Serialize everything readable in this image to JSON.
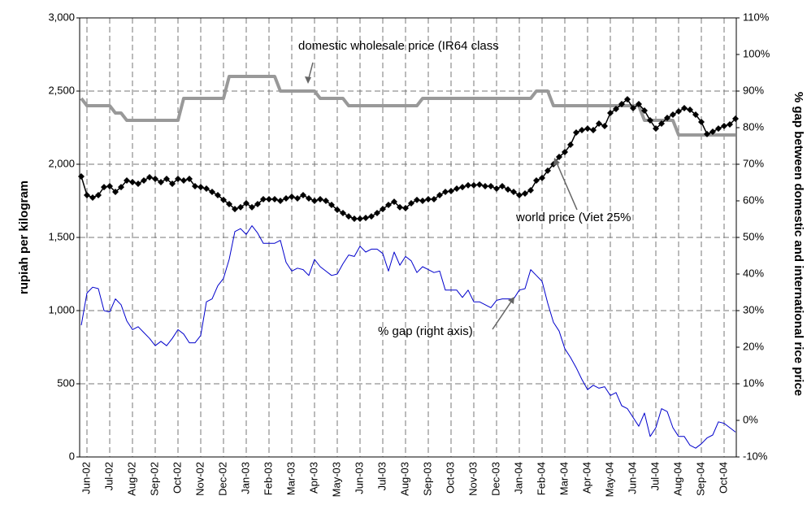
{
  "chart_data": {
    "type": "line",
    "ylabel": "rupiah per kilogram",
    "y2label": "% gap between domestic and international rice price",
    "categories": [
      null,
      "Jun-02",
      null,
      null,
      null,
      "Jul-02",
      null,
      null,
      null,
      "Aug-02",
      null,
      null,
      null,
      "Sep-02",
      null,
      null,
      null,
      "Oct-02",
      null,
      null,
      null,
      "Nov-02",
      null,
      null,
      null,
      "Dec-02",
      null,
      null,
      null,
      "Jan-03",
      null,
      null,
      null,
      "Feb-03",
      null,
      null,
      null,
      "Mar-03",
      null,
      null,
      null,
      "Apr-03",
      null,
      null,
      null,
      "May-03",
      null,
      null,
      null,
      "Jun-03",
      null,
      null,
      null,
      "Jul-03",
      null,
      null,
      null,
      "Aug-03",
      null,
      null,
      null,
      "Sep-03",
      null,
      null,
      null,
      "Oct-03",
      null,
      null,
      null,
      "Nov-03",
      null,
      null,
      null,
      "Dec-03",
      null,
      null,
      null,
      "Jan-04",
      null,
      null,
      null,
      "Feb-04",
      null,
      null,
      null,
      "Mar-04",
      null,
      null,
      null,
      "Apr-04",
      null,
      null,
      null,
      "May-04",
      null,
      null,
      null,
      "Jun-04",
      null,
      null,
      null,
      "Jul-04",
      null,
      null,
      null,
      "Aug-04",
      null,
      null,
      null,
      "Sep-04",
      null,
      null,
      null,
      "Oct-04",
      null,
      null
    ],
    "series": [
      {
        "name": "domestic wholesale price (IR64 class",
        "color": "#999999",
        "marker": "none",
        "width": 4,
        "values": [
          2450,
          2400,
          2400,
          2400,
          2400,
          2400,
          2350,
          2350,
          2300,
          2300,
          2300,
          2300,
          2300,
          2300,
          2300,
          2300,
          2300,
          2300,
          2450,
          2450,
          2450,
          2450,
          2450,
          2450,
          2450,
          2450,
          2600,
          2600,
          2600,
          2600,
          2600,
          2600,
          2600,
          2600,
          2600,
          2500,
          2500,
          2500,
          2500,
          2500,
          2500,
          2500,
          2450,
          2450,
          2450,
          2450,
          2450,
          2400,
          2400,
          2400,
          2400,
          2400,
          2400,
          2400,
          2400,
          2400,
          2400,
          2400,
          2400,
          2400,
          2450,
          2450,
          2450,
          2450,
          2450,
          2450,
          2450,
          2450,
          2450,
          2450,
          2450,
          2450,
          2450,
          2450,
          2450,
          2450,
          2450,
          2450,
          2450,
          2450,
          2500,
          2500,
          2500,
          2400,
          2400,
          2400,
          2400,
          2400,
          2400,
          2400,
          2400,
          2400,
          2400,
          2400,
          2400,
          2400,
          2400,
          2400,
          2400,
          2300,
          2300,
          2300,
          2300,
          2300,
          2300,
          2200,
          2200,
          2200,
          2200,
          2200,
          2200,
          2200,
          2200,
          2200,
          2200,
          2200
        ]
      },
      {
        "name": "world price (Viet 25%",
        "color": "#000000",
        "marker": "diamond",
        "width": 1.5,
        "values": [
          1917,
          1789,
          1772,
          1789,
          1844,
          1850,
          1811,
          1844,
          1889,
          1878,
          1867,
          1889,
          1911,
          1900,
          1878,
          1900,
          1867,
          1900,
          1889,
          1900,
          1850,
          1844,
          1833,
          1811,
          1789,
          1756,
          1728,
          1694,
          1706,
          1733,
          1706,
          1728,
          1761,
          1761,
          1761,
          1750,
          1767,
          1778,
          1767,
          1789,
          1767,
          1750,
          1761,
          1750,
          1722,
          1689,
          1667,
          1644,
          1628,
          1628,
          1633,
          1644,
          1667,
          1694,
          1722,
          1744,
          1706,
          1700,
          1733,
          1756,
          1750,
          1761,
          1761,
          1789,
          1811,
          1817,
          1833,
          1844,
          1856,
          1856,
          1861,
          1850,
          1850,
          1833,
          1850,
          1828,
          1811,
          1789,
          1800,
          1822,
          1889,
          1906,
          1956,
          2000,
          2050,
          2083,
          2133,
          2217,
          2233,
          2244,
          2233,
          2278,
          2261,
          2350,
          2378,
          2411,
          2444,
          2383,
          2411,
          2367,
          2300,
          2244,
          2278,
          2317,
          2339,
          2361,
          2383,
          2372,
          2339,
          2289,
          2206,
          2222,
          2244,
          2261,
          2272,
          2311
        ]
      },
      {
        "name": "% gap (right axis)",
        "color": "#0000cc",
        "marker": "none",
        "width": 1,
        "axis": "y2",
        "values": [
          26,
          34.8,
          36.4,
          36,
          30,
          29.6,
          33.2,
          31.6,
          27.2,
          24.8,
          25.6,
          24,
          22.4,
          20.4,
          21.6,
          20.4,
          22.4,
          24.8,
          23.6,
          21.2,
          21.2,
          23.2,
          32.4,
          33.2,
          36.8,
          38.8,
          44,
          51.6,
          52.4,
          50.8,
          53.2,
          51.2,
          48.4,
          48.4,
          48.4,
          49.2,
          43.2,
          40.8,
          41.6,
          41.2,
          39.6,
          44,
          42,
          40.8,
          39.6,
          40,
          42.8,
          45.2,
          44.8,
          47.6,
          46,
          46.8,
          46.8,
          45.6,
          40.8,
          46,
          42.4,
          44.8,
          43.6,
          40.4,
          42,
          41.2,
          40.4,
          40.8,
          35.6,
          35.6,
          35.6,
          33.6,
          35.6,
          32.4,
          32.4,
          31.6,
          30.8,
          32.8,
          33.2,
          33.2,
          33.2,
          35.6,
          36,
          41.2,
          39.6,
          38,
          32,
          26.8,
          24.4,
          19.6,
          17.2,
          14.4,
          11.2,
          8.4,
          9.6,
          8.8,
          9.2,
          6.8,
          7.6,
          4,
          3.2,
          0.8,
          -1.6,
          2,
          -4.4,
          -2,
          3.2,
          2.4,
          -2,
          -4.4,
          -4.4,
          -6.8,
          -7.6,
          -6.4,
          -4.8,
          -4,
          -0.4,
          -0.8,
          -2,
          -3.2
        ]
      }
    ],
    "ylim": [
      0,
      3000
    ],
    "yticks": [
      0,
      500,
      {
        "value": 1000,
        "label": "1,000"
      },
      {
        "value": 1500,
        "label": "1,500"
      },
      {
        "value": 2000,
        "label": "2,000"
      },
      {
        "value": 2500,
        "label": "2,500"
      },
      {
        "value": 3000,
        "label": "3,000"
      }
    ],
    "y2lim": [
      -10,
      110
    ],
    "y2ticks": [
      {
        "value": -10,
        "label": "-10%"
      },
      {
        "value": 0,
        "label": "0%"
      },
      {
        "value": 10,
        "label": "10%"
      },
      {
        "value": 20,
        "label": "20%"
      },
      {
        "value": 30,
        "label": "30%"
      },
      {
        "value": 40,
        "label": "40%"
      },
      {
        "value": 50,
        "label": "50%"
      },
      {
        "value": 60,
        "label": "60%"
      },
      {
        "value": 70,
        "label": "70%"
      },
      {
        "value": 80,
        "label": "80%"
      },
      {
        "value": 90,
        "label": "90%"
      },
      {
        "value": 100,
        "label": "100%"
      },
      {
        "value": 110,
        "label": "110%"
      }
    ],
    "grid": true
  }
}
